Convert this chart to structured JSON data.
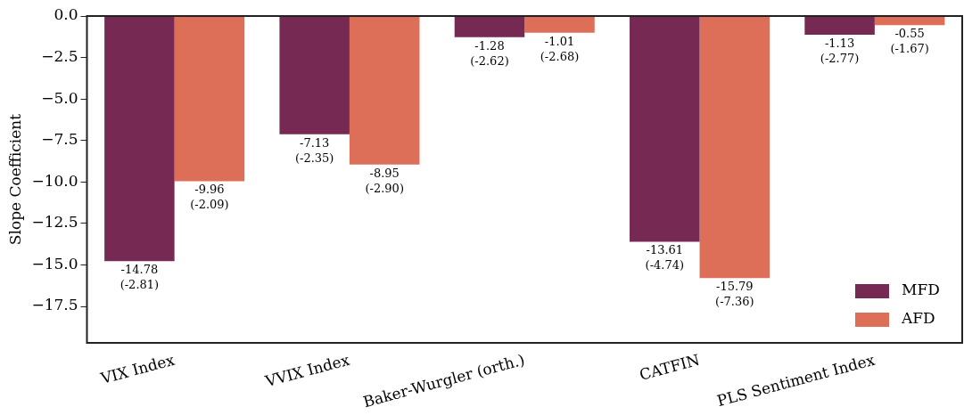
{
  "chart_data": {
    "type": "bar",
    "ylabel": "Slope Coefficient",
    "categories": [
      "VIX Index",
      "VVIX Index",
      "Baker-Wurgler (orth.)",
      "CATFIN",
      "PLS Sentiment Index"
    ],
    "series": [
      {
        "name": "MFD",
        "color": "#762a53",
        "values": [
          -14.78,
          -7.13,
          -1.28,
          -13.61,
          -1.13
        ],
        "value_labels": [
          "-14.78\n(-2.81)",
          "-7.13\n(-2.35)",
          "-1.28\n(-2.62)",
          "-13.61\n(-4.74)",
          "-1.13\n(-2.77)"
        ]
      },
      {
        "name": "AFD",
        "color": "#dd6e58",
        "values": [
          -9.96,
          -8.95,
          -1.01,
          -15.79,
          -0.55
        ],
        "value_labels": [
          "-9.96\n(-2.09)",
          "-8.95\n(-2.90)",
          "-1.01\n(-2.68)",
          "-15.79\n(-7.36)",
          "-0.55\n(-1.67)"
        ]
      }
    ],
    "ylim": [
      -19.7,
      0
    ],
    "yticks": [
      {
        "value": 0,
        "label": "0.0"
      },
      {
        "value": -2.5,
        "label": "−2.5"
      },
      {
        "value": -5,
        "label": "−5.0"
      },
      {
        "value": -7.5,
        "label": "−7.5"
      },
      {
        "value": -10,
        "label": "−10.0"
      },
      {
        "value": -12.5,
        "label": "−12.5"
      },
      {
        "value": -15,
        "label": "−15.0"
      },
      {
        "value": -17.5,
        "label": "−17.5"
      }
    ],
    "grid": false,
    "legend": "bottom right"
  }
}
